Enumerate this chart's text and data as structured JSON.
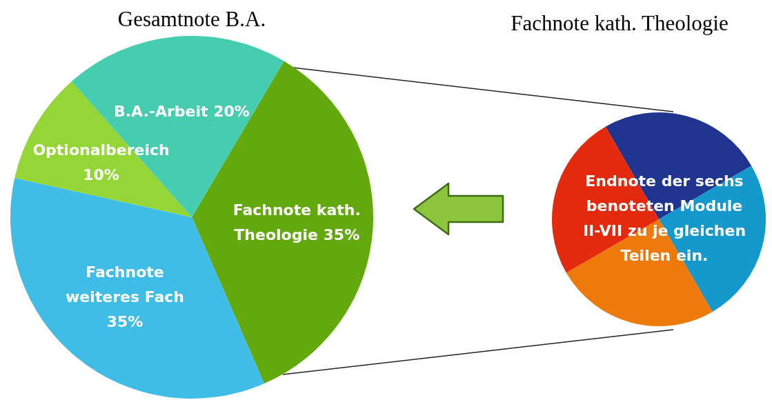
{
  "chart_data": [
    {
      "type": "pie",
      "title": "Gesamtnote B.A.",
      "categories": [
        "Fachnote kath. Theologie",
        "Fachnote weiteres Fach",
        "Optionalbereich",
        "B.A.-Arbeit"
      ],
      "values": [
        35,
        35,
        10,
        20
      ],
      "value_labels": [
        "35%",
        "35%",
        "10%",
        "20%"
      ],
      "colors": [
        "#63a80c",
        "#3fbde6",
        "#93d636",
        "#46cdb0"
      ]
    },
    {
      "type": "pie",
      "title": "Fachnote kath. Theologie",
      "categories": [
        null,
        null,
        null,
        null
      ],
      "values": [
        25,
        25,
        25,
        25
      ],
      "colors": [
        "#1f3590",
        "#1598cc",
        "#ef7a0c",
        "#e42a0c"
      ],
      "annotations": [
        "Endnote der sechs benoteten Module II-VII  zu je gleichen Teilen ein."
      ]
    }
  ]
}
